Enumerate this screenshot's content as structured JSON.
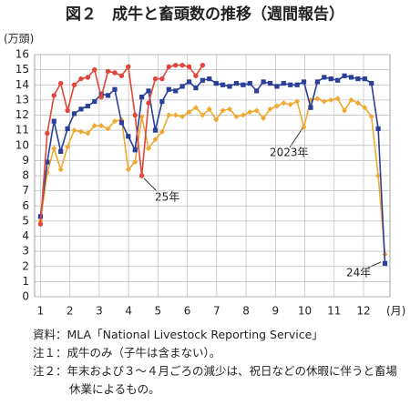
{
  "chart_data": {
    "type": "line",
    "title": "図２　成牛と畜頭数の推移（週間報告）",
    "y_label": "(万頭)",
    "x_label": "(月)",
    "x": [
      1,
      1.23,
      1.46,
      1.69,
      1.92,
      2.15,
      2.38,
      2.61,
      2.84,
      3.07,
      3.3,
      3.53,
      3.76,
      3.99,
      4.22,
      4.45,
      4.68,
      4.91,
      5.14,
      5.37,
      5.6,
      5.83,
      6.06,
      6.29,
      6.52,
      6.75,
      6.98,
      7.21,
      7.44,
      7.67,
      7.9,
      8.13,
      8.36,
      8.59,
      8.82,
      9.05,
      9.28,
      9.51,
      9.74,
      9.97,
      10.2,
      10.43,
      10.66,
      10.89,
      11.12,
      11.35,
      11.58,
      11.81,
      12.04,
      12.27,
      12.5,
      12.73
    ],
    "series": [
      {
        "name": "2023年",
        "color": "#f0a830",
        "marker": "diamond",
        "values": [
          5.0,
          8.2,
          9.8,
          8.4,
          9.9,
          11.0,
          10.9,
          10.8,
          11.3,
          11.3,
          11.1,
          11.6,
          11.7,
          8.4,
          8.9,
          11.9,
          9.8,
          10.4,
          10.9,
          12.0,
          12.0,
          11.9,
          12.2,
          12.5,
          12.0,
          12.4,
          11.7,
          12.3,
          12.4,
          11.9,
          12.0,
          12.2,
          12.3,
          11.8,
          12.4,
          12.6,
          12.8,
          12.7,
          12.9,
          11.2,
          13.0,
          13.1,
          12.9,
          13.0,
          13.1,
          12.3,
          13.0,
          12.8,
          12.5,
          11.9,
          8.0,
          2.8
        ]
      },
      {
        "name": "24年",
        "color": "#2b3f99",
        "marker": "square",
        "values": [
          5.3,
          8.9,
          11.6,
          9.6,
          11.1,
          12.1,
          12.4,
          12.6,
          12.9,
          13.4,
          13.3,
          13.7,
          11.5,
          10.6,
          9.7,
          13.2,
          13.6,
          11.0,
          12.9,
          13.7,
          13.6,
          13.9,
          14.2,
          13.8,
          14.3,
          14.4,
          14.1,
          14.0,
          13.9,
          14.1,
          14.0,
          14.1,
          13.6,
          14.2,
          14.1,
          13.9,
          14.1,
          14.0,
          14.0,
          14.2,
          12.5,
          14.2,
          14.5,
          14.4,
          14.3,
          14.6,
          14.5,
          14.4,
          14.4,
          14.1,
          11.1,
          2.2
        ]
      },
      {
        "name": "25年",
        "color": "#e0463a",
        "marker": "circle",
        "values": [
          4.8,
          10.8,
          13.3,
          14.1,
          12.3,
          14.0,
          14.4,
          14.5,
          15.0,
          13.2,
          14.9,
          14.8,
          14.6,
          15.2,
          12.0,
          8.0,
          12.8,
          14.4,
          14.4,
          15.2,
          15.3,
          15.3,
          15.2,
          14.6,
          15.3,
          null,
          null,
          null,
          null,
          null,
          null,
          null,
          null,
          null,
          null,
          null,
          null,
          null,
          null,
          null,
          null,
          null,
          null,
          null,
          null,
          null,
          null,
          null,
          null,
          null,
          null,
          null
        ]
      }
    ],
    "xlim": [
      0.8,
      12.9
    ],
    "xticks": [
      1,
      2,
      3,
      4,
      5,
      6,
      7,
      8,
      9,
      10,
      11,
      12
    ],
    "ylim": [
      0,
      16
    ],
    "yticks": [
      0,
      1,
      2,
      3,
      4,
      5,
      6,
      7,
      8,
      9,
      10,
      11,
      12,
      13,
      14,
      15,
      16
    ],
    "grid": true
  },
  "notes": [
    "資料：MLA「National Livestock Reporting Service」",
    "注１：成牛のみ（子牛は含まない）。",
    "注２：年末および３～４月ごろの減少は、祝日などの休暇に伴うと畜場休業によるもの。"
  ]
}
